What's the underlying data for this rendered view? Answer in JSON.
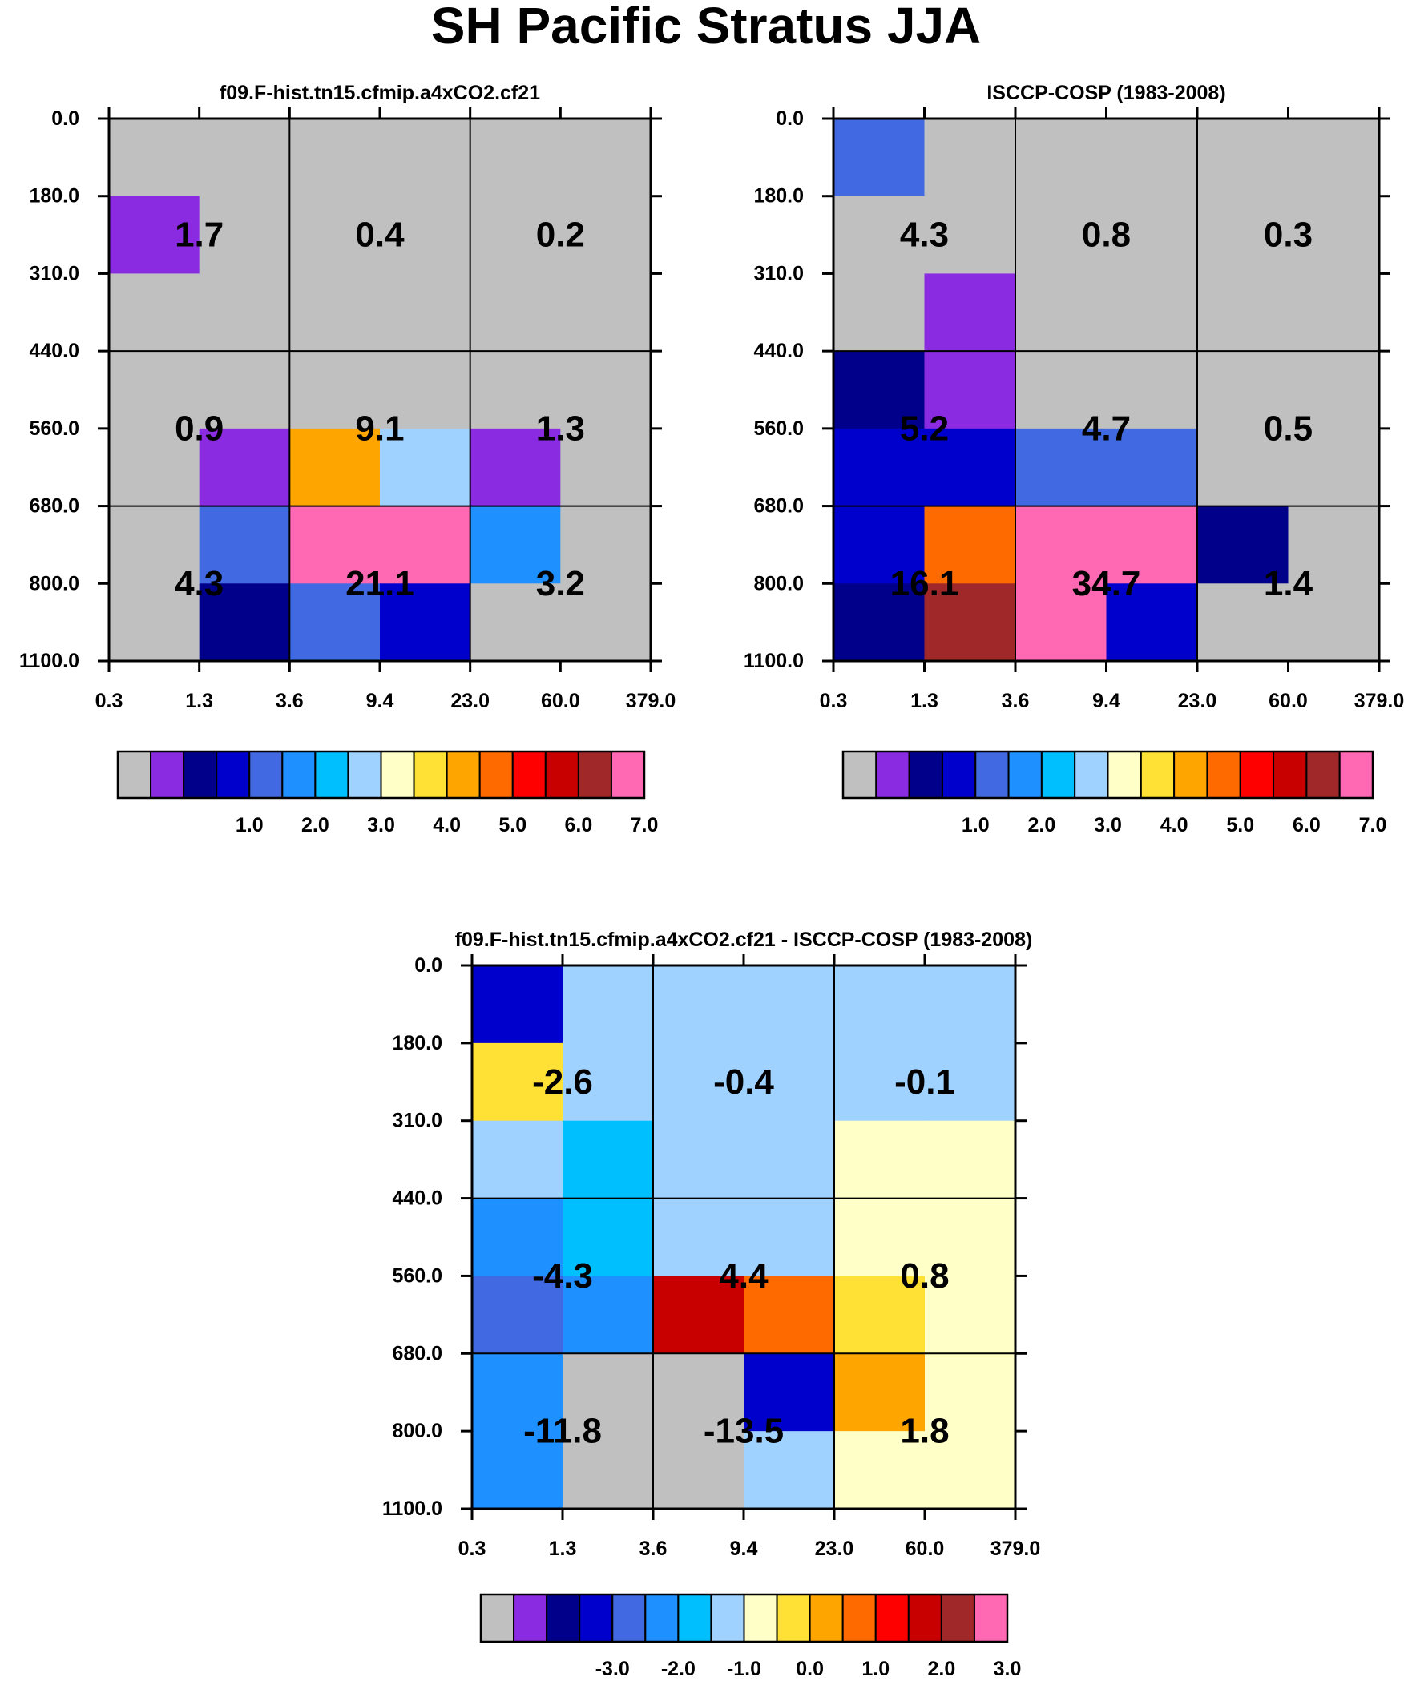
{
  "title": "SH Pacific Stratus JJA",
  "palettes": {
    "standard": [
      "#c0c0c0",
      "#8a2be2",
      "#00008b",
      "#0000cd",
      "#4169e1",
      "#1e90ff",
      "#00bfff",
      "#a0d2ff",
      "#ffffc8",
      "#ffe135",
      "#ffa500",
      "#ff6a00",
      "#ff0000",
      "#c80000",
      "#a02828",
      "#ff69b4"
    ]
  },
  "chart_data": [
    {
      "type": "heatmap",
      "title": "f09.F-hist.tn15.cfmip.a4xCO2.cf21",
      "xlabel": "",
      "ylabel": "",
      "x_ticks": [
        "0.3",
        "1.3",
        "3.6",
        "9.4",
        "23.0",
        "60.0",
        "379.0"
      ],
      "y_ticks": [
        "0.0",
        "180.0",
        "310.0",
        "440.0",
        "560.0",
        "680.0",
        "800.0",
        "1100.0"
      ],
      "cell_color_index": [
        [
          0,
          0,
          0,
          0,
          0,
          0
        ],
        [
          1,
          0,
          0,
          0,
          0,
          0
        ],
        [
          0,
          0,
          0,
          0,
          0,
          0
        ],
        [
          0,
          0,
          0,
          0,
          0,
          0
        ],
        [
          0,
          1,
          10,
          7,
          1,
          0
        ],
        [
          0,
          4,
          15,
          15,
          5,
          0
        ],
        [
          0,
          2,
          4,
          3,
          0,
          0
        ]
      ],
      "labels": [
        {
          "x": "1.3",
          "y": "245",
          "text": "1.7"
        },
        {
          "x": "9.4",
          "y": "245",
          "text": "0.4"
        },
        {
          "x": "60.0",
          "y": "245",
          "text": "0.2"
        },
        {
          "x": "1.3",
          "y": "560",
          "text": "0.9"
        },
        {
          "x": "9.4",
          "y": "560",
          "text": "9.1"
        },
        {
          "x": "60.0",
          "y": "560",
          "text": "1.3"
        },
        {
          "x": "1.3",
          "y": "800",
          "text": "4.3"
        },
        {
          "x": "9.4",
          "y": "800",
          "text": "21.1"
        },
        {
          "x": "60.0",
          "y": "800",
          "text": "3.2"
        }
      ],
      "colorbar": {
        "palette": "standard",
        "labels": [
          "1.0",
          "2.0",
          "3.0",
          "4.0",
          "5.0",
          "6.0",
          "7.0"
        ]
      }
    },
    {
      "type": "heatmap",
      "title": "ISCCP-COSP (1983-2008)",
      "xlabel": "",
      "ylabel": "",
      "x_ticks": [
        "0.3",
        "1.3",
        "3.6",
        "9.4",
        "23.0",
        "60.0",
        "379.0"
      ],
      "y_ticks": [
        "0.0",
        "180.0",
        "310.0",
        "440.0",
        "560.0",
        "680.0",
        "800.0",
        "1100.0"
      ],
      "cell_color_index": [
        [
          4,
          0,
          0,
          0,
          0,
          0
        ],
        [
          0,
          0,
          0,
          0,
          0,
          0
        ],
        [
          0,
          1,
          0,
          0,
          0,
          0
        ],
        [
          2,
          1,
          0,
          0,
          0,
          0
        ],
        [
          3,
          3,
          4,
          4,
          0,
          0
        ],
        [
          3,
          11,
          15,
          15,
          2,
          0
        ],
        [
          2,
          14,
          15,
          3,
          0,
          0
        ]
      ],
      "labels": [
        {
          "x": "1.3",
          "y": "245",
          "text": "4.3"
        },
        {
          "x": "9.4",
          "y": "245",
          "text": "0.8"
        },
        {
          "x": "60.0",
          "y": "245",
          "text": "0.3"
        },
        {
          "x": "1.3",
          "y": "560",
          "text": "5.2"
        },
        {
          "x": "9.4",
          "y": "560",
          "text": "4.7"
        },
        {
          "x": "60.0",
          "y": "560",
          "text": "0.5"
        },
        {
          "x": "1.3",
          "y": "800",
          "text": "16.1"
        },
        {
          "x": "9.4",
          "y": "800",
          "text": "34.7"
        },
        {
          "x": "60.0",
          "y": "800",
          "text": "1.4"
        }
      ],
      "colorbar": {
        "palette": "standard",
        "labels": [
          "1.0",
          "2.0",
          "3.0",
          "4.0",
          "5.0",
          "6.0",
          "7.0"
        ]
      }
    },
    {
      "type": "heatmap",
      "title": "f09.F-hist.tn15.cfmip.a4xCO2.cf21 - ISCCP-COSP (1983-2008)",
      "xlabel": "",
      "ylabel": "",
      "x_ticks": [
        "0.3",
        "1.3",
        "3.6",
        "9.4",
        "23.0",
        "60.0",
        "379.0"
      ],
      "y_ticks": [
        "0.0",
        "180.0",
        "310.0",
        "440.0",
        "560.0",
        "680.0",
        "800.0",
        "1100.0"
      ],
      "cell_color_index": [
        [
          3,
          7,
          7,
          7,
          7,
          7
        ],
        [
          9,
          7,
          7,
          7,
          7,
          7
        ],
        [
          7,
          6,
          7,
          7,
          8,
          8
        ],
        [
          5,
          6,
          7,
          7,
          8,
          8
        ],
        [
          4,
          5,
          13,
          11,
          9,
          8
        ],
        [
          5,
          0,
          0,
          3,
          10,
          8
        ],
        [
          5,
          0,
          0,
          7,
          8,
          8
        ]
      ],
      "labels": [
        {
          "x": "1.3",
          "y": "245",
          "text": "-2.6"
        },
        {
          "x": "9.4",
          "y": "245",
          "text": "-0.4"
        },
        {
          "x": "60.0",
          "y": "245",
          "text": "-0.1"
        },
        {
          "x": "1.3",
          "y": "560",
          "text": "-4.3"
        },
        {
          "x": "9.4",
          "y": "560",
          "text": "4.4"
        },
        {
          "x": "60.0",
          "y": "560",
          "text": "0.8"
        },
        {
          "x": "1.3",
          "y": "800",
          "text": "-11.8"
        },
        {
          "x": "9.4",
          "y": "800",
          "text": "-13.5"
        },
        {
          "x": "60.0",
          "y": "800",
          "text": "1.8"
        }
      ],
      "colorbar": {
        "palette": "standard",
        "labels": [
          "-3.0",
          "-2.0",
          "-1.0",
          "0.0",
          "1.0",
          "2.0",
          "3.0"
        ]
      }
    }
  ]
}
